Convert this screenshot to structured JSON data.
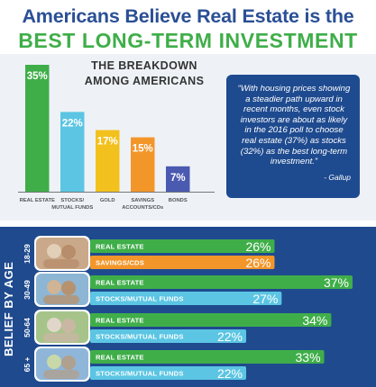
{
  "header": {
    "title_line1": "Americans Believe Real Estate is the",
    "title_line2": "BEST LONG-TERM INVESTMENT"
  },
  "colors": {
    "blue": "#2a4f95",
    "green": "#3fae49",
    "light_blue": "#5bc5e3",
    "yellow": "#f3c11e",
    "orange": "#f3962a",
    "purple": "#4a5ab0",
    "panel": "#eef2f7",
    "navy": "#1f4a8e"
  },
  "quote": {
    "text": "“With housing prices showing a steadier path upward in recent months, even stock investors are about as likely in the 2016 poll to choose real estate (37%) as stocks (32%) as the best long-term investment.”",
    "source": "- Gallup"
  },
  "chart_data": [
    {
      "type": "bar",
      "title_lines": [
        "THE BREAKDOWN",
        "AMONG AMERICANS"
      ],
      "categories": [
        [
          "REAL ESTATE"
        ],
        [
          "STOCKS/",
          "MUTUAL FUNDS"
        ],
        [
          "GOLD"
        ],
        [
          "SAVINGS",
          "ACCOUNTS/CDs"
        ],
        [
          "BONDS"
        ]
      ],
      "values": [
        35,
        22,
        17,
        15,
        7
      ],
      "value_labels": [
        "35%",
        "22%",
        "17%",
        "15%",
        "7%"
      ],
      "bar_colors": [
        "#3fae49",
        "#5bc5e3",
        "#f3c11e",
        "#f3962a",
        "#4a5ab0"
      ],
      "ylim": [
        0,
        35
      ]
    },
    {
      "type": "bar",
      "orientation": "horizontal",
      "title": "BELIEF BY AGE",
      "groups": [
        {
          "age": "18-29",
          "items": [
            {
              "label": "REAL ESTATE",
              "value": 26,
              "value_label": "26%",
              "color": "#3fae49"
            },
            {
              "label": "SAVINGS/CDS",
              "value": 26,
              "value_label": "26%",
              "color": "#f3962a"
            }
          ]
        },
        {
          "age": "30-49",
          "items": [
            {
              "label": "REAL ESTATE",
              "value": 37,
              "value_label": "37%",
              "color": "#3fae49"
            },
            {
              "label": "STOCKS/MUTUAL FUNDS",
              "value": 27,
              "value_label": "27%",
              "color": "#5bc5e3"
            }
          ]
        },
        {
          "age": "50-64",
          "items": [
            {
              "label": "REAL ESTATE",
              "value": 34,
              "value_label": "34%",
              "color": "#3fae49"
            },
            {
              "label": "STOCKS/MUTUAL FUNDS",
              "value": 22,
              "value_label": "22%",
              "color": "#5bc5e3"
            }
          ]
        },
        {
          "age": "65 +",
          "items": [
            {
              "label": "REAL ESTATE",
              "value": 33,
              "value_label": "33%",
              "color": "#3fae49"
            },
            {
              "label": "STOCKS/MUTUAL FUNDS",
              "value": 22,
              "value_label": "22%",
              "color": "#5bc5e3"
            }
          ]
        }
      ],
      "xlim": [
        0,
        37
      ]
    }
  ]
}
